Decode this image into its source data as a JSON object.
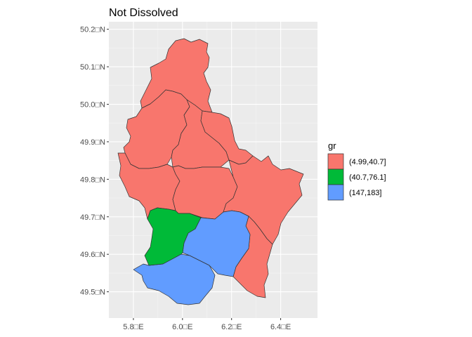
{
  "chart_data": {
    "type": "choropleth",
    "title": "Not Dissolved",
    "legend_title": "gr",
    "legend_position": "right",
    "grid": true,
    "xlim": [
      5.7,
      6.55
    ],
    "ylim": [
      49.43,
      50.22
    ],
    "x_ticks": [
      {
        "value": 5.8,
        "label": "5.8□E"
      },
      {
        "value": 6.0,
        "label": "6.0□E"
      },
      {
        "value": 6.2,
        "label": "6.2□E"
      },
      {
        "value": 6.4,
        "label": "6.4□E"
      }
    ],
    "y_ticks": [
      {
        "value": 49.5,
        "label": "49.5□N"
      },
      {
        "value": 49.6,
        "label": "49.6□N"
      },
      {
        "value": 49.7,
        "label": "49.7□N"
      },
      {
        "value": 49.8,
        "label": "49.8□N"
      },
      {
        "value": 49.9,
        "label": "49.9□N"
      },
      {
        "value": 50.0,
        "label": "50.0□N"
      },
      {
        "value": 50.1,
        "label": "50.1□N"
      },
      {
        "value": 50.2,
        "label": "50.2□N"
      }
    ],
    "legend": [
      {
        "label": "(4.99,40.7]",
        "color": "#F8766D"
      },
      {
        "label": "(40.7,76.1]",
        "color": "#00BA38"
      },
      {
        "label": "(147,183]",
        "color": "#619CFF"
      }
    ]
  }
}
